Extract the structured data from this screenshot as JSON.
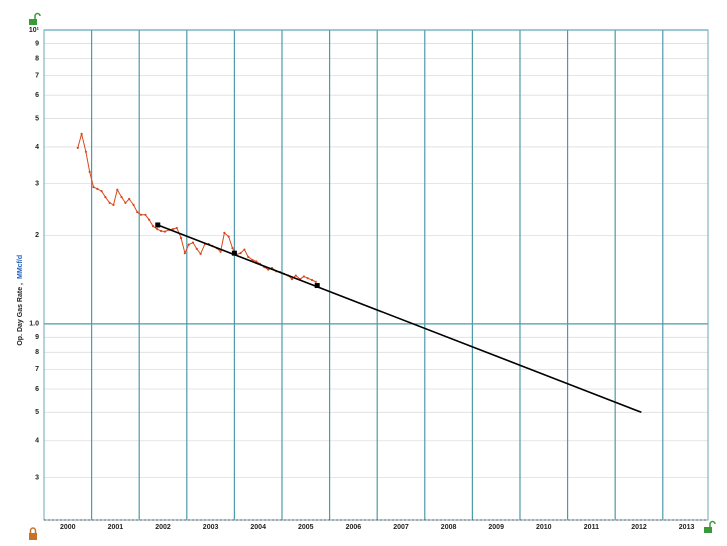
{
  "chart_data": {
    "type": "line",
    "ylabel": "Op. Day Gas Rate ,",
    "ylabel_unit": "MMcf/d",
    "log_y": true,
    "ylim": [
      0.215,
      10
    ],
    "yticks": [
      {
        "value": 0.3,
        "label": "3"
      },
      {
        "value": 0.4,
        "label": "4"
      },
      {
        "value": 0.5,
        "label": "5"
      },
      {
        "value": 0.6,
        "label": "6"
      },
      {
        "value": 0.7,
        "label": "7"
      },
      {
        "value": 0.8,
        "label": "8"
      },
      {
        "value": 0.9,
        "label": "9"
      },
      {
        "value": 1,
        "label": "1.0"
      },
      2,
      3,
      4,
      5,
      6,
      7,
      8,
      9,
      {
        "value": 10,
        "label": "10¹"
      }
    ],
    "xlim": [
      2000,
      2013.95
    ],
    "xgrid": [
      2001,
      2002,
      2003,
      2004,
      2005,
      2006,
      2007,
      2008,
      2009,
      2010,
      2011,
      2012,
      2013
    ],
    "xticks": [
      {
        "value": 2000.5,
        "label": "2000"
      },
      {
        "value": 2001.5,
        "label": "2001"
      },
      {
        "value": 2002.5,
        "label": "2002"
      },
      {
        "value": 2003.5,
        "label": "2003"
      },
      {
        "value": 2004.5,
        "label": "2004"
      },
      {
        "value": 2005.5,
        "label": "2005"
      },
      {
        "value": 2006.5,
        "label": "2006"
      },
      {
        "value": 2007.5,
        "label": "2007"
      },
      {
        "value": 2008.5,
        "label": "2008"
      },
      {
        "value": 2009.5,
        "label": "2009"
      },
      {
        "value": 2010.5,
        "label": "2010"
      },
      {
        "value": 2011.5,
        "label": "2011"
      },
      {
        "value": 2012.5,
        "label": "2012"
      },
      {
        "value": 2013.5,
        "label": "2013"
      }
    ],
    "grid": true,
    "series": [
      {
        "color": "#d9481c",
        "style": "line-dots",
        "x": [
          2000.71,
          2000.79,
          2000.88,
          2000.96,
          2001.04,
          2001.12,
          2001.21,
          2001.29,
          2001.38,
          2001.46,
          2001.54,
          2001.63,
          2001.71,
          2001.79,
          2001.88,
          2001.96,
          2002.04,
          2002.13,
          2002.21,
          2002.29,
          2002.38,
          2002.46,
          2002.54,
          2002.63,
          2002.71,
          2002.79,
          2002.88,
          2002.96,
          2003.04,
          2003.13,
          2003.21,
          2003.29,
          2003.38,
          2003.46,
          2003.54,
          2003.63,
          2003.71,
          2003.79,
          2003.88,
          2003.96,
          2004.04,
          2004.13,
          2004.21,
          2004.29,
          2004.38,
          2004.46,
          2004.54,
          2004.63,
          2004.71,
          2004.79,
          2004.88,
          2004.96,
          2005.04,
          2005.13,
          2005.21,
          2005.29,
          2005.38,
          2005.46,
          2005.54,
          2005.63,
          2005.71
        ],
        "values": [
          3.97,
          4.43,
          3.85,
          3.29,
          2.92,
          2.88,
          2.83,
          2.7,
          2.58,
          2.54,
          2.86,
          2.7,
          2.58,
          2.66,
          2.54,
          2.4,
          2.35,
          2.35,
          2.26,
          2.15,
          2.1,
          2.07,
          2.06,
          2.09,
          2.1,
          2.12,
          1.96,
          1.74,
          1.86,
          1.89,
          1.8,
          1.73,
          1.87,
          1.87,
          1.84,
          1.81,
          1.76,
          2.04,
          1.98,
          1.81,
          1.72,
          1.74,
          1.79,
          1.69,
          1.65,
          1.63,
          1.6,
          1.56,
          1.53,
          1.55,
          1.51,
          1.5,
          1.48,
          1.46,
          1.42,
          1.46,
          1.42,
          1.45,
          1.43,
          1.41,
          1.39
        ]
      },
      {
        "color": "#000000",
        "style": "line",
        "x": [
          2002.39,
          2012.55
        ],
        "values": [
          2.17,
          0.5
        ]
      },
      {
        "color": "#000000",
        "style": "markers",
        "x": [
          2002.39,
          2004.0,
          2005.74
        ],
        "values": [
          2.17,
          1.74,
          1.35
        ]
      }
    ]
  }
}
